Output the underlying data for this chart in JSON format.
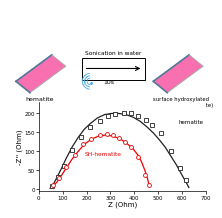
{
  "xlabel": "Z (Ohm)",
  "ylabel": "-Z'' (Ohm)",
  "xlim": [
    0,
    700
  ],
  "ylim": [
    -5,
    230
  ],
  "xticks": [
    0,
    100,
    200,
    300,
    400,
    500,
    600,
    700
  ],
  "yticks": [
    0,
    50,
    100,
    150,
    200
  ],
  "hematite_fit_x": [
    48,
    60,
    75,
    95,
    115,
    140,
    165,
    190,
    215,
    245,
    275,
    305,
    335,
    365,
    395,
    425,
    455,
    480,
    505,
    530,
    555,
    575,
    595,
    610,
    620,
    628
  ],
  "hematite_fit_y": [
    2,
    12,
    30,
    55,
    82,
    112,
    137,
    158,
    173,
    188,
    197,
    200,
    200,
    197,
    190,
    179,
    163,
    148,
    130,
    110,
    85,
    65,
    42,
    25,
    14,
    4
  ],
  "hematite_data_x": [
    55,
    80,
    105,
    140,
    175,
    215,
    255,
    290,
    320,
    355,
    385,
    415,
    450,
    475,
    510,
    555,
    590,
    615
  ],
  "hematite_data_y": [
    8,
    32,
    62,
    102,
    138,
    163,
    180,
    192,
    198,
    200,
    200,
    193,
    183,
    170,
    148,
    100,
    55,
    25
  ],
  "sh_fit_x": [
    48,
    60,
    75,
    95,
    115,
    140,
    165,
    190,
    220,
    250,
    280,
    310,
    340,
    370,
    395,
    415,
    430,
    445,
    455,
    462
  ],
  "sh_fit_y": [
    2,
    8,
    18,
    36,
    56,
    80,
    100,
    118,
    132,
    140,
    143,
    140,
    133,
    120,
    106,
    90,
    72,
    48,
    28,
    8
  ],
  "sh_data_x": [
    60,
    85,
    115,
    150,
    185,
    220,
    255,
    285,
    310,
    335,
    360,
    385,
    415,
    445,
    460
  ],
  "sh_data_y": [
    10,
    30,
    58,
    90,
    118,
    133,
    142,
    145,
    142,
    136,
    125,
    110,
    85,
    38,
    12
  ],
  "hematite_color": "#222222",
  "sh_color": "#ee0000",
  "hematite_label": "hematite",
  "sh_label": "SH-hematite",
  "top_text_sonication": "Sonication in water",
  "top_text_10s": "10s",
  "hematite_top_label": "hematite",
  "sh_hematite_top_label": "surface hydroxylated\nhematite (SH-hematite)",
  "pink_color": "#f560a0",
  "pink_face": "#f870b0",
  "dark_edge": "#557799",
  "arrow_color": "#333333",
  "wifi_color": "#44aadd"
}
